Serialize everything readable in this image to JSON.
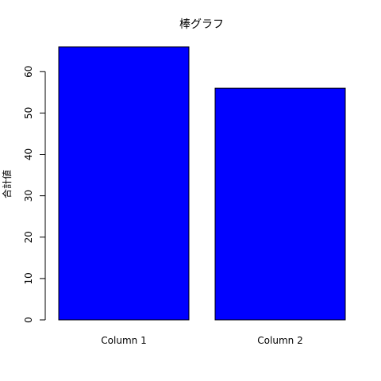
{
  "chart_data": {
    "type": "bar",
    "title": "棒グラフ",
    "xlabel": "",
    "ylabel": "合計値",
    "categories": [
      "Column 1",
      "Column 2"
    ],
    "values": [
      66,
      56
    ],
    "ylim": [
      0,
      66
    ],
    "yticks": [
      0,
      10,
      20,
      30,
      40,
      50,
      60
    ],
    "grid": false,
    "bar_color": "#0000ff",
    "bar_edge_color": "#000000"
  }
}
